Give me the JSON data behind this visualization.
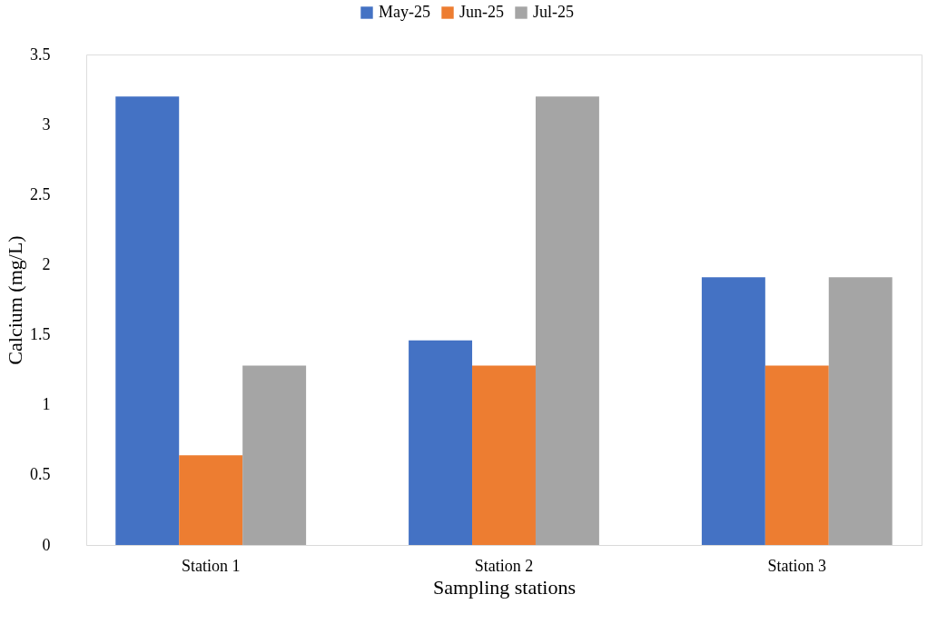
{
  "chart_data": {
    "type": "bar",
    "xlabel": "Sampling stations",
    "ylabel": "Calcium (mg/L)",
    "categories": [
      "Station 1",
      "Station 2",
      "Station 3"
    ],
    "series": [
      {
        "name": "May-25",
        "color": "#4472c4",
        "values": [
          3.2,
          1.46,
          1.91
        ]
      },
      {
        "name": "Jun-25",
        "color": "#ed7d31",
        "values": [
          0.64,
          1.28,
          1.28
        ]
      },
      {
        "name": "Jul-25",
        "color": "#a5a5a5",
        "values": [
          1.28,
          3.2,
          1.91
        ]
      }
    ],
    "ylim": [
      0,
      3.5
    ],
    "yticks": [
      {
        "value": 0,
        "label": "0"
      },
      0.5,
      {
        "value": 1,
        "label": "1"
      },
      1.5,
      {
        "value": 2,
        "label": "2"
      },
      2.5,
      {
        "value": 3,
        "label": "3"
      },
      3.5
    ],
    "grid": false,
    "legend": "top"
  }
}
